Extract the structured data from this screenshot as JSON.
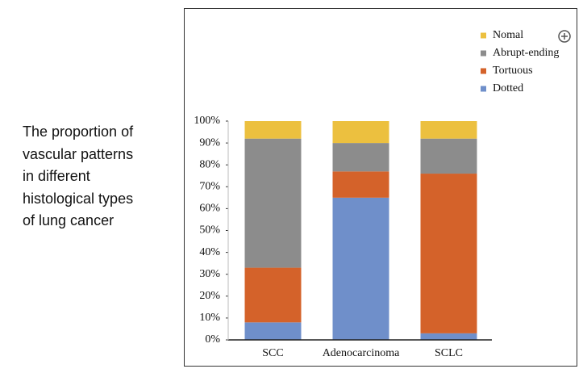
{
  "caption_lines": [
    "The proportion of",
    "vascular patterns",
    "in different",
    "histological types",
    "of lung cancer"
  ],
  "chart_data": {
    "type": "stacked_bar",
    "categories": [
      "SCC",
      "Adenocarcinoma",
      "SCLC"
    ],
    "series": [
      {
        "name": "Dotted",
        "color": "#6f8fca",
        "values": [
          8,
          65,
          3
        ]
      },
      {
        "name": "Tortuous",
        "color": "#d4622a",
        "values": [
          25,
          12,
          73
        ]
      },
      {
        "name": "Abrupt-ending",
        "color": "#8c8c8c",
        "values": [
          59,
          13,
          16
        ]
      },
      {
        "name": "Nomal",
        "color": "#ecc03f",
        "values": [
          8,
          10,
          8
        ]
      }
    ],
    "ylim": [
      0,
      100
    ],
    "yticks": [
      {
        "value": 0,
        "label": "0%"
      },
      {
        "value": 10,
        "label": "10%"
      },
      {
        "value": 20,
        "label": "20%"
      },
      {
        "value": 30,
        "label": "30%"
      },
      {
        "value": 40,
        "label": "40%"
      },
      {
        "value": 50,
        "label": "50%"
      },
      {
        "value": 60,
        "label": "60%"
      },
      {
        "value": 70,
        "label": "70%"
      },
      {
        "value": 80,
        "label": "80%"
      },
      {
        "value": 90,
        "label": "90%"
      },
      {
        "value": 100,
        "label": "100%"
      }
    ],
    "legend": "top-right",
    "grid": false
  }
}
